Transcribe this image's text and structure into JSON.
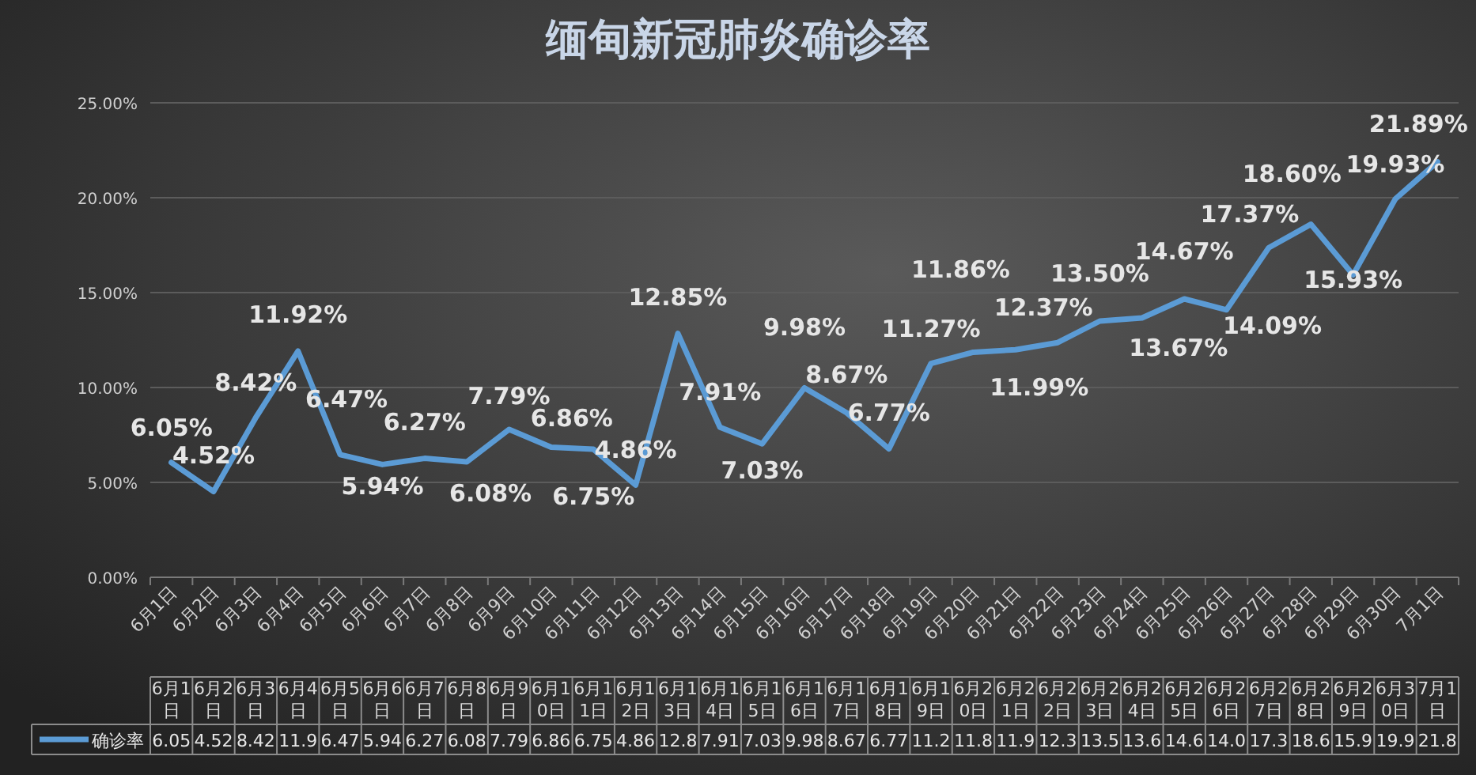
{
  "chart_data": {
    "type": "line",
    "title": "缅甸新冠肺炎确诊率",
    "categories": [
      "6月1日",
      "6月2日",
      "6月3日",
      "6月4日",
      "6月5日",
      "6月6日",
      "6月7日",
      "6月8日",
      "6月9日",
      "6月10日",
      "6月11日",
      "6月12日",
      "6月13日",
      "6月14日",
      "6月15日",
      "6月16日",
      "6月17日",
      "6月18日",
      "6月19日",
      "6月20日",
      "6月21日",
      "6月22日",
      "6月23日",
      "6月24日",
      "6月25日",
      "6月26日",
      "6月27日",
      "6月28日",
      "6月29日",
      "6月30日",
      "7月1日"
    ],
    "series": [
      {
        "name": "确诊率",
        "color": "#5b9bd5",
        "values": [
          6.05,
          4.52,
          8.42,
          11.92,
          6.47,
          5.94,
          6.27,
          6.08,
          7.79,
          6.86,
          6.75,
          4.86,
          12.85,
          7.91,
          7.03,
          9.98,
          8.67,
          6.77,
          11.27,
          11.86,
          11.99,
          12.37,
          13.5,
          13.67,
          14.67,
          14.09,
          17.37,
          18.6,
          15.93,
          19.93,
          21.89
        ],
        "value_labels": [
          "6.05%",
          "4.52%",
          "8.42%",
          "11.92%",
          "6.47%",
          "5.94%",
          "6.27%",
          "6.08%",
          "7.79%",
          "6.86%",
          "6.75%",
          "4.86%",
          "12.85%",
          "7.91%",
          "7.03%",
          "9.98%",
          "8.67%",
          "6.77%",
          "11.27%",
          "11.86%",
          "11.99%",
          "12.37%",
          "13.50%",
          "13.67%",
          "14.67%",
          "14.09%",
          "17.37%",
          "18.60%",
          "15.93%",
          "19.93%",
          "21.89%"
        ]
      }
    ],
    "ylim": [
      0,
      25
    ],
    "yticks": [
      {
        "value": 0,
        "label": "0.00%"
      },
      {
        "value": 5,
        "label": "5.00%"
      },
      {
        "value": 10,
        "label": "10.00%"
      },
      {
        "value": 15,
        "label": "15.00%"
      },
      {
        "value": 20,
        "label": "20.00%"
      },
      {
        "value": 25,
        "label": "25.00%"
      }
    ],
    "grid": "y",
    "legend": "bottom",
    "marker": "none",
    "line_style": "solid",
    "annotations": [
      "6.05",
      "4.52",
      "8.42",
      "11.9",
      "6.47",
      "5.94",
      "6.27",
      "6.08",
      "7.79",
      "6.86",
      "6.75",
      "4.86",
      "12.8",
      "7.91",
      "7.03",
      "9.98",
      "8.67",
      "6.77",
      "11.2",
      "11.8",
      "11.9",
      "12.3",
      "13.5",
      "13.6",
      "14.6",
      "14.0",
      "17.3",
      "18.6",
      "15.9",
      "19.9",
      "21.8"
    ]
  }
}
